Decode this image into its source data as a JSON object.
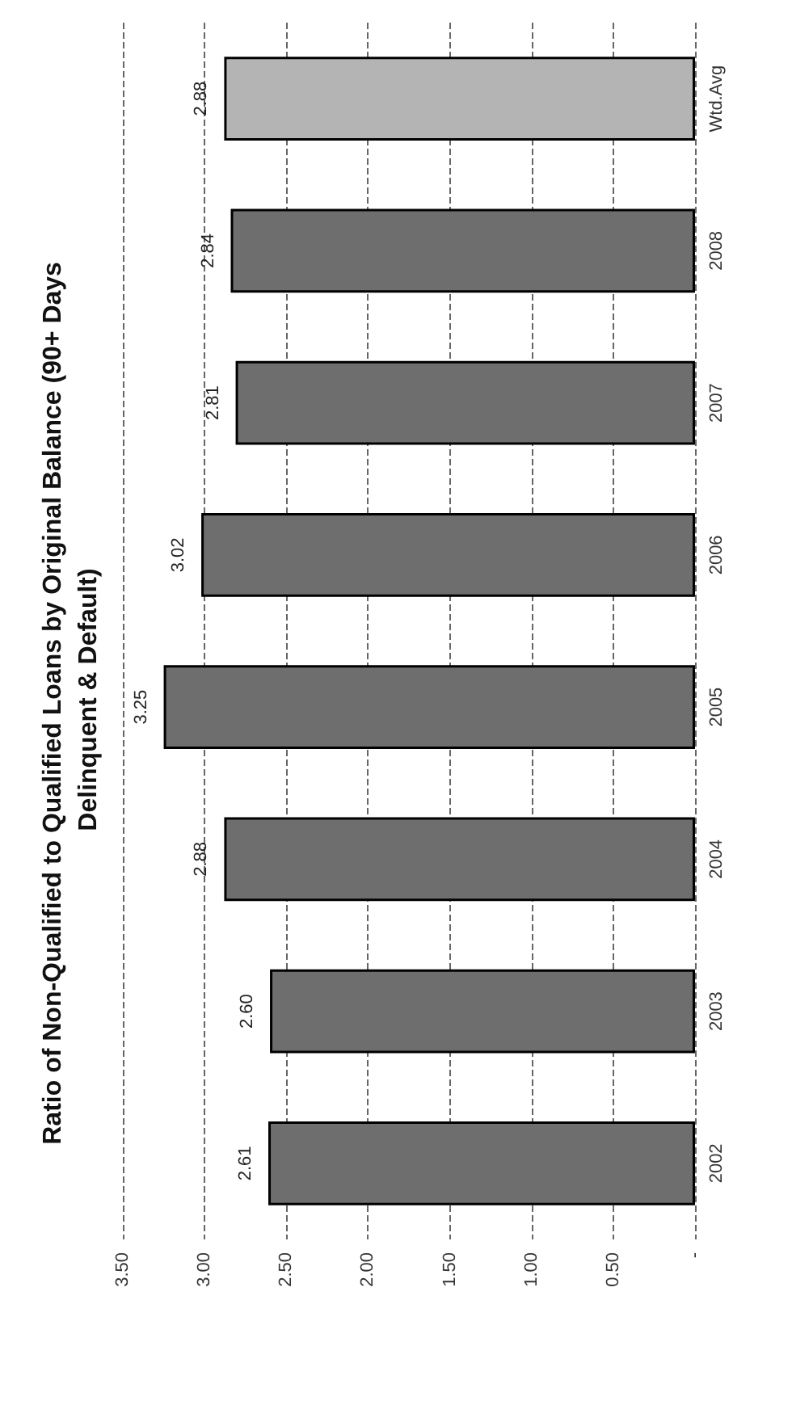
{
  "chart_data": {
    "type": "bar",
    "orientation": "horizontal",
    "title": "Ratio of Non-Qualified to Qualified Loans by Original Balance (90+ Days Delinquent & Default)",
    "categories": [
      "Wtd.Avg",
      "2008",
      "2007",
      "2006",
      "2005",
      "2004",
      "2003",
      "2002"
    ],
    "values": [
      2.88,
      2.84,
      2.81,
      3.02,
      3.25,
      2.88,
      2.6,
      2.61
    ],
    "value_labels": [
      "2.88",
      "2.84",
      "2.81",
      "3.02",
      "3.25",
      "2.88",
      "2.60",
      "2.61"
    ],
    "colors": [
      "#b4b4b4",
      "#6e6e6e",
      "#6e6e6e",
      "#6e6e6e",
      "#6e6e6e",
      "#6e6e6e",
      "#6e6e6e",
      "#6e6e6e"
    ],
    "xlim": [
      3.5,
      0
    ],
    "xticks": [
      {
        "value": 3.5,
        "label": "3.50"
      },
      {
        "value": 3,
        "label": "3.00"
      },
      {
        "value": 2.5,
        "label": "2.50"
      },
      {
        "value": 2,
        "label": "2.00"
      },
      {
        "value": 1.5,
        "label": "1.50"
      },
      {
        "value": 1,
        "label": "1.00"
      },
      {
        "value": 0.5,
        "label": "0.50"
      },
      {
        "value": 0,
        "label": "-"
      }
    ],
    "grid": "x"
  }
}
